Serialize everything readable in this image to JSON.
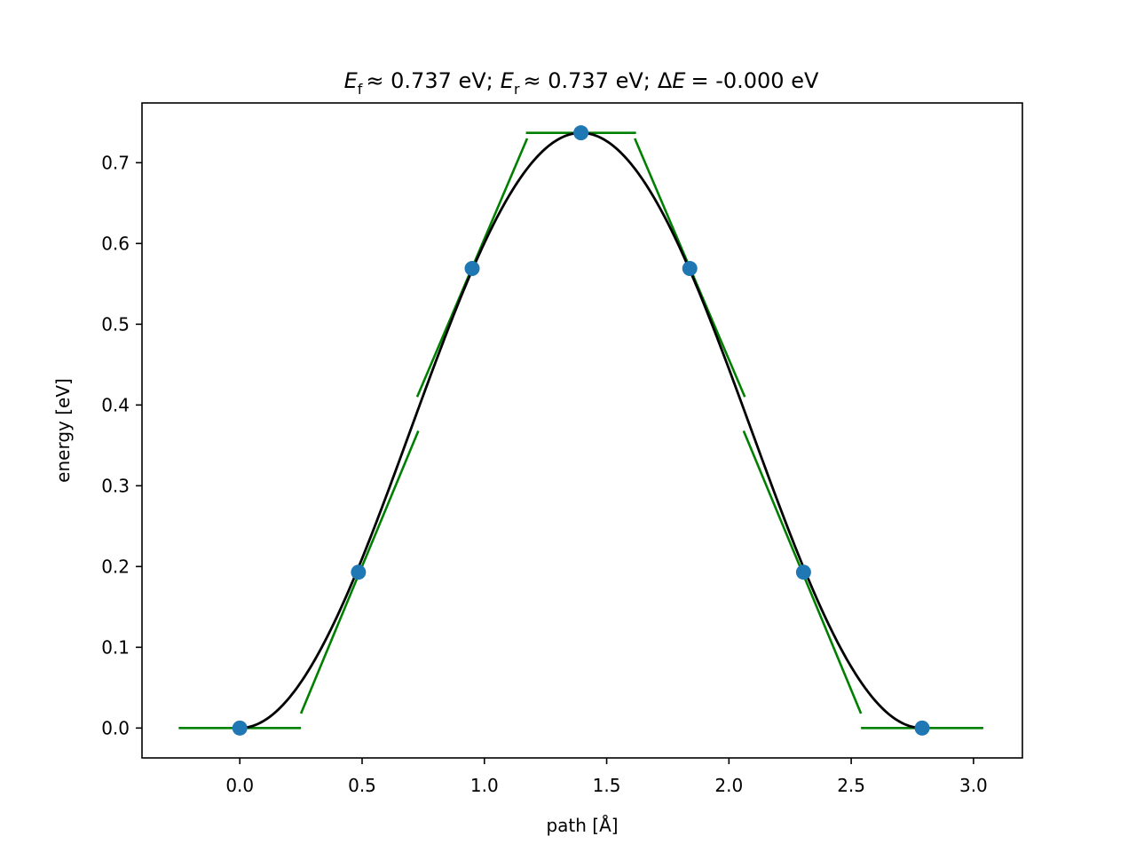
{
  "chart_data": {
    "type": "line",
    "title": {
      "ef_symbol": "E",
      "ef_sub": "f",
      "ef_text": "≈ 0.737 eV;",
      "er_symbol": "E",
      "er_sub": "r",
      "er_text": "≈ 0.737 eV;",
      "de_delta": "Δ",
      "de_symbol": "E",
      "de_text": "= -0.000 eV"
    },
    "xlabel": "path [Å]",
    "ylabel": "energy [eV]",
    "xlim": [
      -0.4,
      3.2
    ],
    "ylim": [
      -0.037,
      0.774
    ],
    "xticks": [
      0.0,
      0.5,
      1.0,
      1.5,
      2.0,
      2.5,
      3.0
    ],
    "xtick_labels": [
      "0.0",
      "0.5",
      "1.0",
      "1.5",
      "2.0",
      "2.5",
      "3.0"
    ],
    "yticks": [
      0.0,
      0.1,
      0.2,
      0.3,
      0.4,
      0.5,
      0.6,
      0.7
    ],
    "ytick_labels": [
      "0.0",
      "0.1",
      "0.2",
      "0.3",
      "0.4",
      "0.5",
      "0.6",
      "0.7"
    ],
    "grid": false,
    "images": {
      "x": [
        0.0,
        0.485,
        0.95,
        1.395,
        1.84,
        2.305,
        2.79
      ],
      "y": [
        0.0,
        0.193,
        0.569,
        0.737,
        0.569,
        0.193,
        0.0
      ],
      "color": "#1f77b4"
    },
    "spline": {
      "color": "#000000",
      "peak_x": 1.395,
      "peak_y": 0.737,
      "end_x": 2.79
    },
    "tangents": {
      "color": "#008000",
      "segments": [
        {
          "x": [
            -0.25,
            0.25
          ],
          "y": [
            0.0,
            0.0
          ]
        },
        {
          "x": [
            0.25,
            0.73
          ],
          "y": [
            0.018,
            0.368
          ]
        },
        {
          "x": [
            0.725,
            1.175
          ],
          "y": [
            0.41,
            0.73
          ]
        },
        {
          "x": [
            1.17,
            1.62
          ],
          "y": [
            0.737,
            0.737
          ]
        },
        {
          "x": [
            1.615,
            2.065
          ],
          "y": [
            0.73,
            0.41
          ]
        },
        {
          "x": [
            2.06,
            2.54
          ],
          "y": [
            0.368,
            0.018
          ]
        },
        {
          "x": [
            2.54,
            3.04
          ],
          "y": [
            0.0,
            0.0
          ]
        }
      ]
    }
  }
}
